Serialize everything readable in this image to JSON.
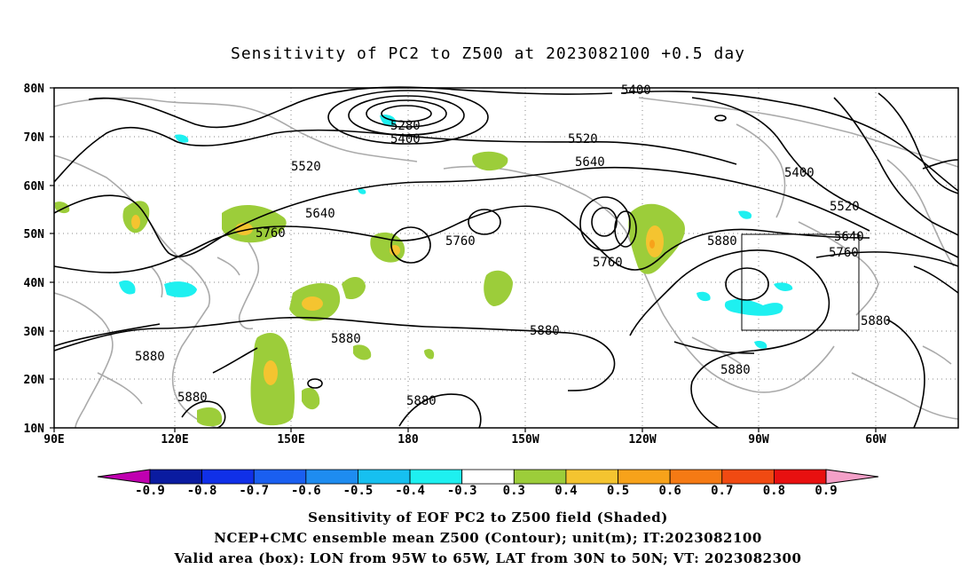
{
  "title": "Sensitivity of PC2 to Z500 at 2023082100 +0.5 day",
  "lat_labels": [
    "80N",
    "70N",
    "60N",
    "50N",
    "40N",
    "30N",
    "20N",
    "10N"
  ],
  "lon_labels": [
    "90E",
    "120E",
    "150E",
    "180",
    "150W",
    "120W",
    "90W",
    "60W"
  ],
  "contour_labels": [
    "5400",
    "5280",
    "5400",
    "5520",
    "5520",
    "5640",
    "5640",
    "5760",
    "5760",
    "5760",
    "5880",
    "5880",
    "5880",
    "5880",
    "5880",
    "5880",
    "5400",
    "5520",
    "5640",
    "5760",
    "5880",
    "5880"
  ],
  "colorbar": {
    "labels": [
      "-0.9",
      "-0.8",
      "-0.7",
      "-0.6",
      "-0.5",
      "-0.4",
      "-0.3",
      "0.3",
      "0.4",
      "0.5",
      "0.6",
      "0.7",
      "0.8",
      "0.9"
    ],
    "colors": [
      "#c000b0",
      "#0a1ba0",
      "#1030e8",
      "#1a5ff0",
      "#1e8cf0",
      "#16c0f0",
      "#1ef0f0",
      "#ffffff",
      "#9ccd3a",
      "#f4c430",
      "#f7a21a",
      "#f57a14",
      "#f04a12",
      "#e81010",
      "#f4a0c8"
    ]
  },
  "footer": {
    "line1": "Sensitivity of EOF PC2 to Z500 field (Shaded)",
    "line2": "NCEP+CMC ensemble mean Z500 (Contour); unit(m); IT:2023082100",
    "line3": "Valid area (box): LON from 95W to 65W, LAT from 30N to 50N; VT: 2023082300"
  }
}
